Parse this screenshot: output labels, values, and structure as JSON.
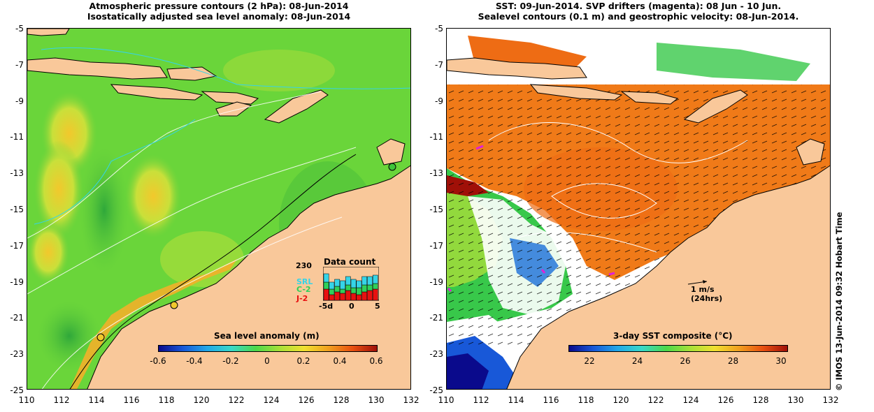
{
  "left_panel": {
    "title_line1": "Atmospheric pressure contours (2 hPa): 08-Jun-2014",
    "title_line2": "Isostatically adjusted sea level anomaly: 08-Jun-2014",
    "colorbar_title": "Sea level anomaly (m)",
    "colorbar_ticks": [
      "-0.6",
      "-0.4",
      "-0.2",
      "0",
      "0.2",
      "0.4",
      "0.6"
    ],
    "data_count": {
      "title": "Data count",
      "max_value": "230",
      "series_labels": [
        "SRL",
        "C-2",
        "J-2"
      ],
      "series_colors": [
        "#35d4e8",
        "#2ed05a",
        "#e81010"
      ],
      "x_ticks": [
        "-5d",
        "0",
        "5"
      ]
    }
  },
  "right_panel": {
    "title_line1": "SST: 09-Jun-2014. SVP drifters (magenta): 08 Jun - 10 Jun.",
    "title_line2": "Sealevel contours (0.1 m) and geostrophic velocity: 08-Jun-2014.",
    "colorbar_title": "3-day SST composite (°C)",
    "colorbar_ticks": [
      "22",
      "24",
      "26",
      "28",
      "30"
    ],
    "scale_arrow_label": "1 m/s",
    "scale_arrow_sublabel": "(24hrs)"
  },
  "y_axis_ticks": [
    "-5",
    "-7",
    "-9",
    "-11",
    "-13",
    "-15",
    "-17",
    "-19",
    "-21",
    "-23",
    "-25"
  ],
  "x_axis_ticks": [
    "110",
    "112",
    "114",
    "116",
    "118",
    "120",
    "122",
    "124",
    "126",
    "128",
    "130",
    "132"
  ],
  "credit": "© IMOS 13-Jun-2014 09:32 Hobart Time",
  "colors": {
    "land": "#f9c89a",
    "ocean_green": "#6ad53a",
    "sst_orange": "#f07a18",
    "coast": "#000000"
  }
}
